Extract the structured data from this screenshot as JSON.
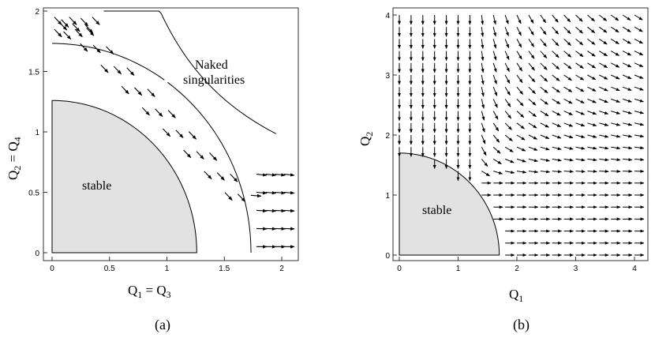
{
  "figure": {
    "panels": [
      {
        "caption": "(a)",
        "xlabel": {
          "main": "Q",
          "sub1": "1",
          "eq": " = Q",
          "sub2": "3"
        },
        "ylabel": {
          "main": "Q",
          "sub1": "2",
          "eq": " = Q",
          "sub2": "4"
        },
        "region_label": "stable",
        "annotation_line1": "Naked",
        "annotation_line2": "singularities"
      },
      {
        "caption": "(b)",
        "xlabel": {
          "main": "Q",
          "sub1": "1"
        },
        "ylabel": {
          "main": "Q",
          "sub1": "2"
        },
        "region_label": "stable"
      }
    ]
  },
  "chart_data": [
    {
      "type": "vector-field",
      "panel": "a",
      "xlim": [
        0,
        2.1
      ],
      "ylim": [
        0,
        2.02
      ],
      "xticks": [
        "0",
        "0.5",
        "1",
        "1.5",
        "2"
      ],
      "yticks": [
        "0",
        "0.5",
        "1",
        "1.5",
        "2"
      ],
      "stable_region_radius": 1.26,
      "curves": [
        "Q1^2+Q2^2=1.26^2",
        "Q1^2+Q2^2=3 (inner)",
        "Q1*Q2=1.94 (upper)"
      ],
      "field": "radial outward flow between the stable region and naked singularities region"
    },
    {
      "type": "vector-field",
      "panel": "b",
      "xlim": [
        0,
        4.2
      ],
      "ylim": [
        0,
        4.2
      ],
      "xticks": [
        "0",
        "1",
        "2",
        "3",
        "4"
      ],
      "yticks": [
        "0",
        "1",
        "2",
        "3",
        "4"
      ],
      "stable_region_radius": 1.7,
      "field": "downward flow at small Q1, rightward flow at large Q1, saddle near (1.7,1.7)"
    }
  ]
}
